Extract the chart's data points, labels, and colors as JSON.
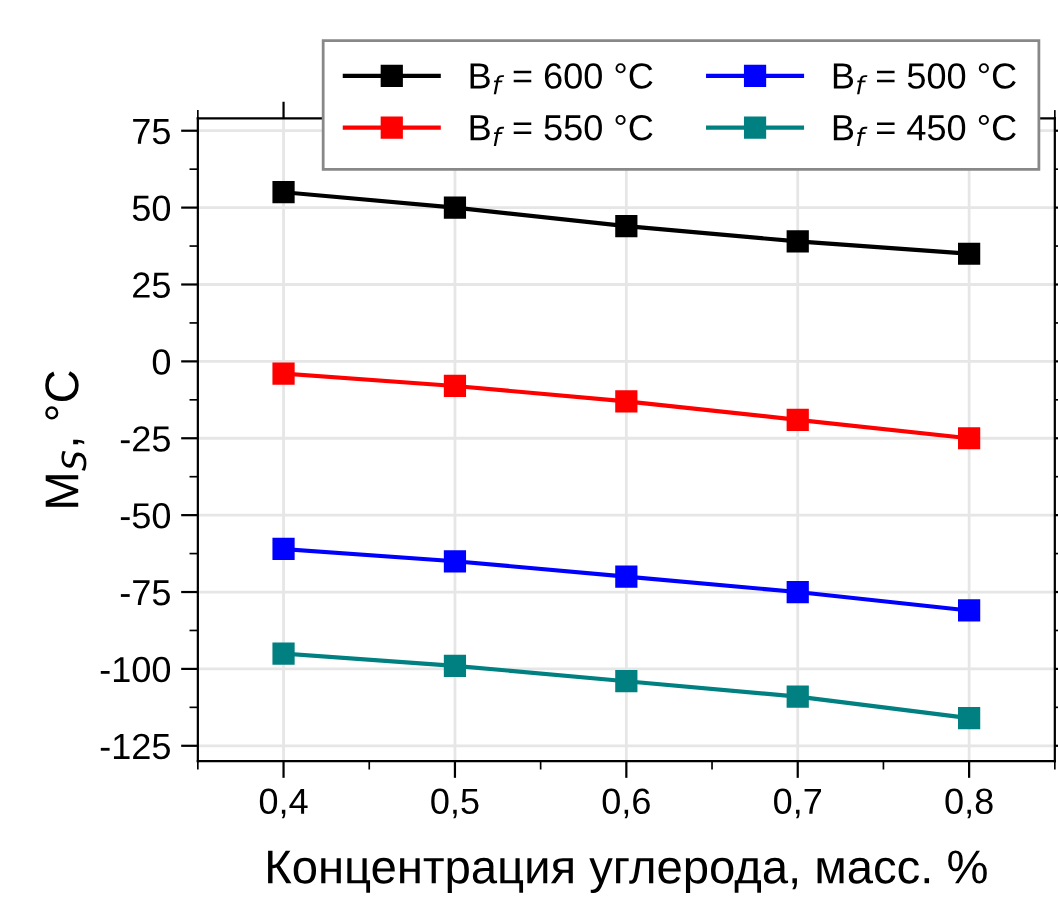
{
  "chart_data": {
    "type": "line",
    "xlabel": "Концентрация углерода, масс. %",
    "ylabel": "M$_{S}$, °C",
    "x": [
      0.4,
      0.5,
      0.6,
      0.7,
      0.8
    ],
    "series": [
      {
        "name": "B$_{f}$ = 600 °C",
        "color": "#000000",
        "values": [
          55,
          50,
          44,
          39,
          35
        ]
      },
      {
        "name": "B$_{f}$ = 550 °C",
        "color": "#ff0000",
        "values": [
          -4,
          -8,
          -13,
          -19,
          -25
        ]
      },
      {
        "name": "B$_{f}$ = 500 °C",
        "color": "#0000ff",
        "values": [
          -61,
          -65,
          -70,
          -75,
          -81
        ]
      },
      {
        "name": "B$_{f}$ = 450 °C",
        "color": "#008080",
        "values": [
          -95,
          -99,
          -104,
          -109,
          -116
        ]
      }
    ],
    "xlim": [
      0.35,
      0.85
    ],
    "ylim": [
      -130,
      79
    ],
    "xticks": [
      {
        "value": 0.4,
        "label": "0,4"
      },
      {
        "value": 0.5,
        "label": "0,5"
      },
      {
        "value": 0.6,
        "label": "0,6"
      },
      {
        "value": 0.7,
        "label": "0,7"
      },
      {
        "value": 0.8,
        "label": "0,8"
      }
    ],
    "yticks": [
      -125,
      -100,
      -75,
      -50,
      -25,
      0,
      25,
      50,
      75
    ],
    "grid": true,
    "legend": "top right",
    "marker": "square",
    "line_style": "solid"
  }
}
